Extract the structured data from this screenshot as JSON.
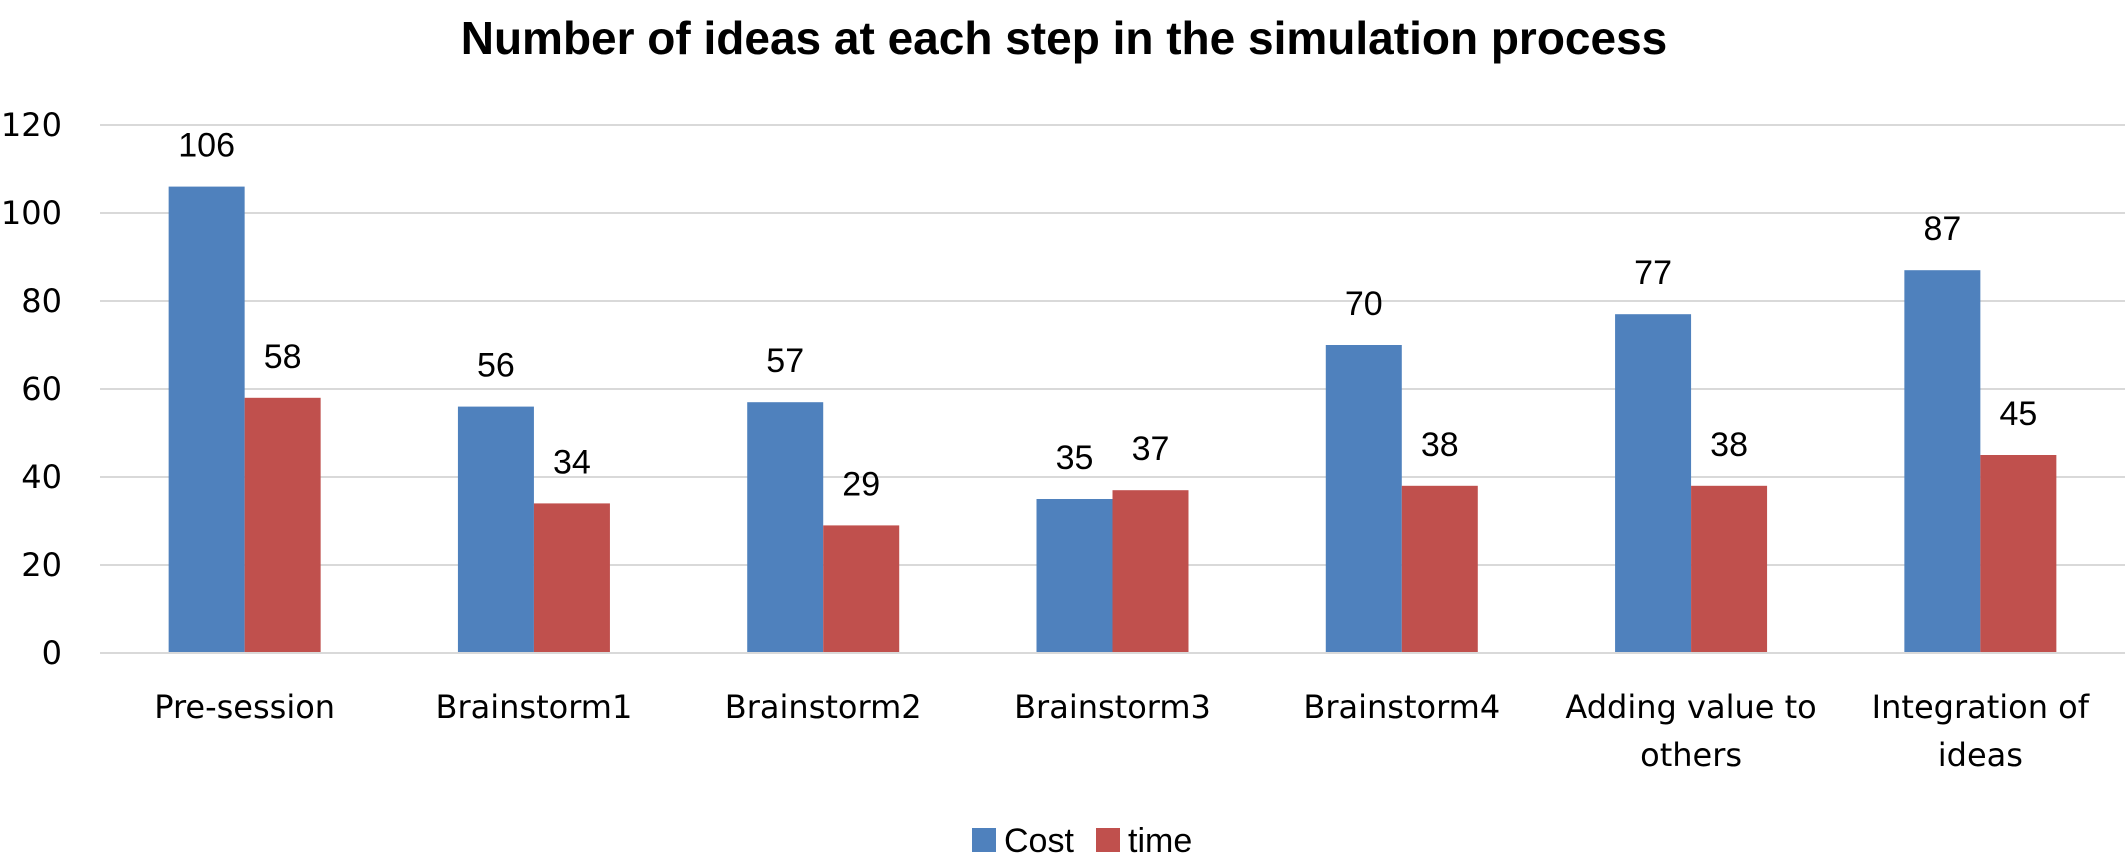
{
  "chart_data": {
    "type": "bar",
    "title": "Number of ideas at each step in the simulation process",
    "xlabel": "",
    "ylabel": "",
    "ylim": [
      0,
      120
    ],
    "yticks": [
      0,
      20,
      40,
      60,
      80,
      100,
      120
    ],
    "grid": true,
    "legend_position": "bottom",
    "categories": [
      [
        "Pre-session"
      ],
      [
        "Brainstorm1"
      ],
      [
        "Brainstorm2"
      ],
      [
        "Brainstorm3"
      ],
      [
        "Brainstorm4"
      ],
      [
        "Adding value to",
        "others"
      ],
      [
        "Integration of",
        "ideas"
      ]
    ],
    "series": [
      {
        "name": "Cost",
        "color": "#4F81BD",
        "values": [
          106,
          56,
          57,
          35,
          70,
          77,
          87
        ]
      },
      {
        "name": "time",
        "color": "#C0504D",
        "values": [
          58,
          34,
          29,
          37,
          38,
          38,
          45
        ]
      }
    ]
  }
}
